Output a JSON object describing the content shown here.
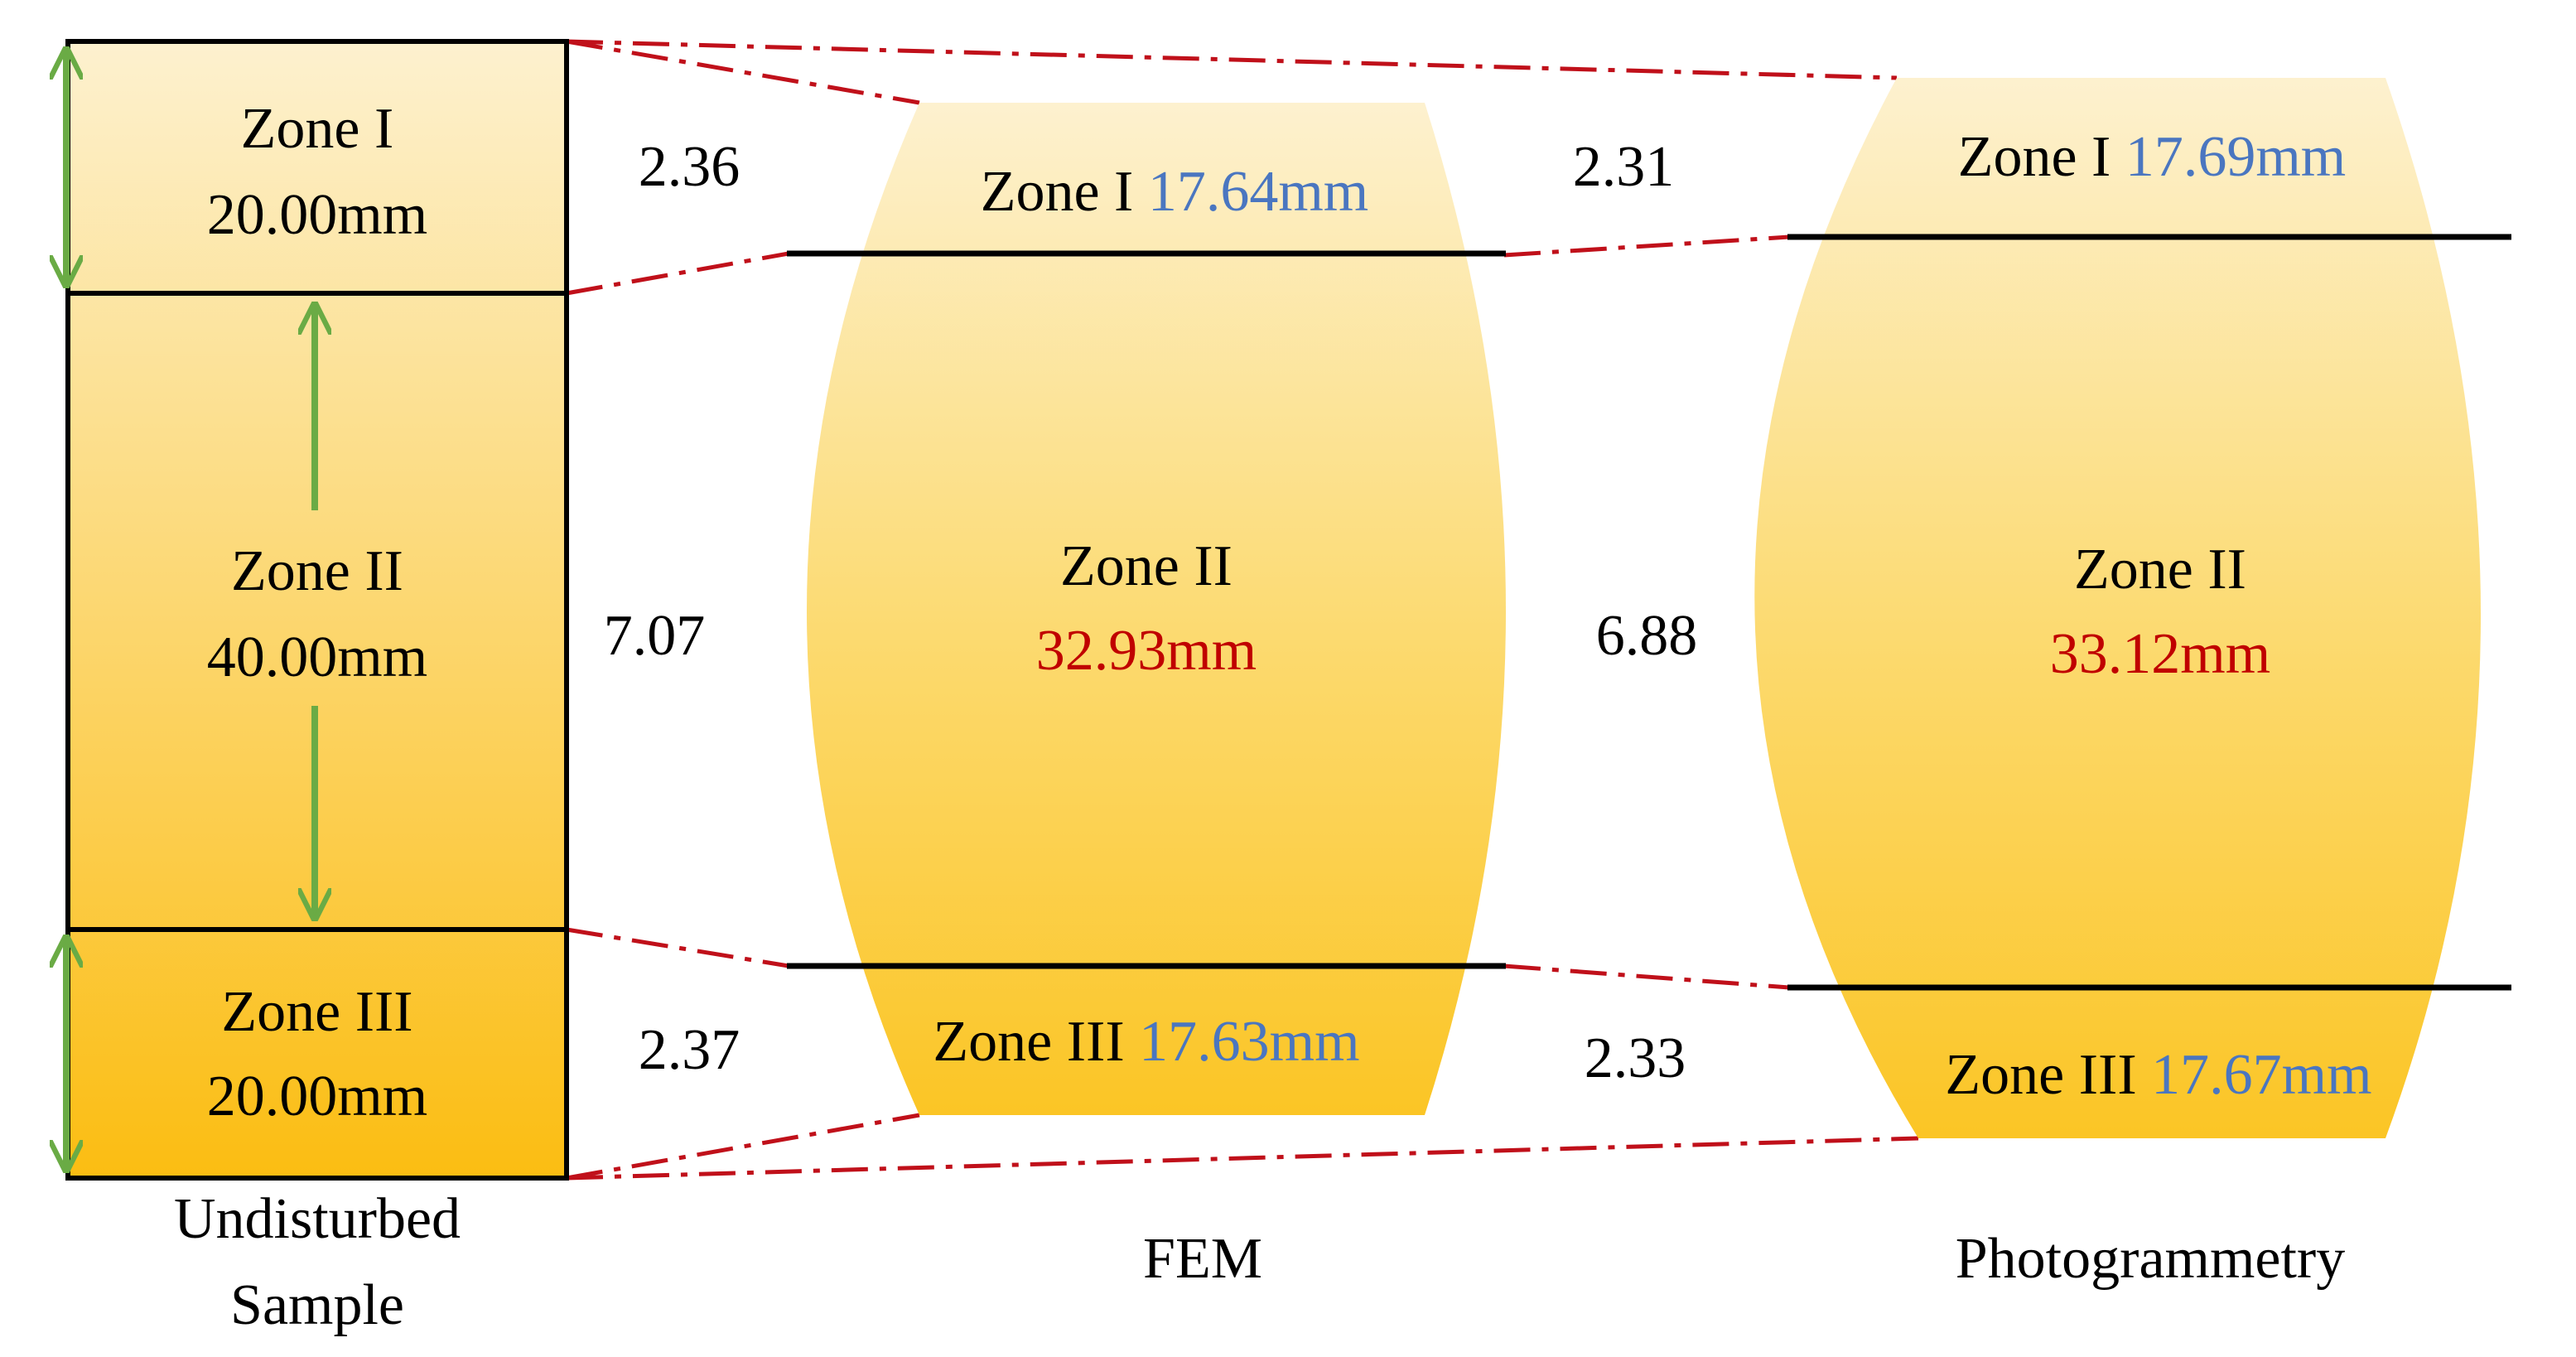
{
  "colors": {
    "blue_value": "#4a76c0",
    "red_value": "#c00000",
    "arrow": "#6aab45",
    "dash_line": "#c0101a",
    "fill_light": "#fdf1cf",
    "fill_dark": "#fbbd12"
  },
  "undisturbed": {
    "caption_line1": "Undisturbed",
    "caption_line2": "Sample",
    "zone1": {
      "name": "Zone I",
      "value": "20.00mm"
    },
    "zone2": {
      "name": "Zone II",
      "value": "40.00mm"
    },
    "zone3": {
      "name": "Zone III",
      "value": "20.00mm"
    }
  },
  "diff_fem": {
    "zone1": "2.36",
    "zone2": "7.07",
    "zone3": "2.37"
  },
  "fem": {
    "caption": "FEM",
    "zone1": {
      "name": "Zone I",
      "value": "17.64mm"
    },
    "zone2": {
      "name": "Zone II",
      "value": "32.93mm"
    },
    "zone3": {
      "name": "Zone III",
      "value": "17.63mm"
    }
  },
  "diff_photo": {
    "zone1": "2.31",
    "zone2": "6.88",
    "zone3": "2.33"
  },
  "photogrammetry": {
    "caption": "Photogrammetry",
    "zone1": {
      "name": "Zone I",
      "value": "17.69mm"
    },
    "zone2": {
      "name": "Zone II",
      "value": "33.12mm"
    },
    "zone3": {
      "name": "Zone III",
      "value": "17.67mm"
    }
  }
}
